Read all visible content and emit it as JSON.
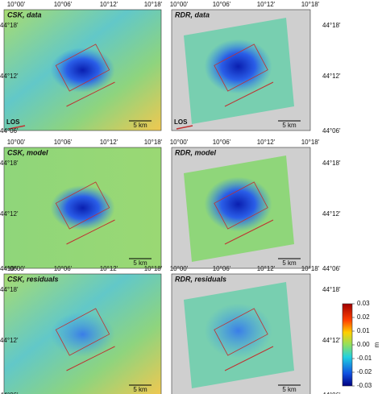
{
  "panels": [
    {
      "title": "CSK, data",
      "scale": "5 km",
      "los": "LOS"
    },
    {
      "title": "RDR, data",
      "scale": "5 km",
      "los": "LOS"
    },
    {
      "title": "CSK, model",
      "scale": "5 km"
    },
    {
      "title": "RDR, model",
      "scale": "5 km"
    },
    {
      "title": "CSK, residuals",
      "scale": "5 km"
    },
    {
      "title": "RDR, residuals",
      "scale": "5 km"
    }
  ],
  "lon_ticks": [
    "10°00'",
    "10°06'",
    "10°12'",
    "10°18'"
  ],
  "lat_ticks": [
    "44°18'",
    "44°12'",
    "44°06'"
  ],
  "colorbar": {
    "lim": [
      -0.03,
      0.03
    ],
    "ticks": [
      0.03,
      0.02,
      0.01,
      {
        "value": 0,
        "label": "0.00"
      },
      -0.01,
      -0.02,
      -0.03
    ],
    "unit": "m"
  }
}
